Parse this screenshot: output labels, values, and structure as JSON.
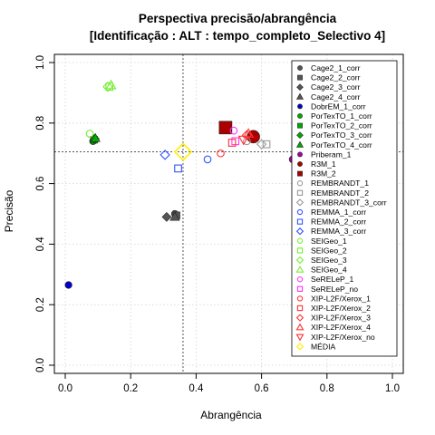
{
  "chart_data": {
    "type": "scatter",
    "title": "Perspectiva precisão/abrangência",
    "subtitle": "[Identificação : ALT : tempo_completo_Selectivo 4]",
    "xlabel": "Abrangência",
    "ylabel": "Precisão",
    "xlim": [
      0,
      1
    ],
    "ylim": [
      0,
      1
    ],
    "x_ticks": [
      "0.0",
      "0.2",
      "0.4",
      "0.6",
      "0.8",
      "1.0"
    ],
    "y_ticks": [
      "0.0",
      "0.2",
      "0.4",
      "0.6",
      "0.8",
      "1.0"
    ],
    "grid": true,
    "legend_position": "right",
    "reference_lines": {
      "mean_recall": 0.36,
      "mean_precision": 0.705
    },
    "series": [
      {
        "name": "Cage2_1_corr",
        "color": "#555555",
        "shape": "circle",
        "filled": true,
        "points": [
          [
            0.335,
            0.5
          ]
        ]
      },
      {
        "name": "Cage2_2_corr",
        "color": "#555555",
        "shape": "square",
        "filled": true,
        "points": [
          [
            0.34,
            0.495
          ]
        ]
      },
      {
        "name": "Cage2_3_corr",
        "color": "#555555",
        "shape": "diamond",
        "filled": true,
        "points": [
          [
            0.31,
            0.49
          ]
        ]
      },
      {
        "name": "Cage2_4_corr",
        "color": "#555555",
        "shape": "triangle",
        "filled": true,
        "points": [
          [
            0.335,
            0.49
          ]
        ]
      },
      {
        "name": "DobrEM_1_corr",
        "color": "#0000cc",
        "shape": "circle",
        "filled": true,
        "points": [
          [
            0.01,
            0.265
          ]
        ]
      },
      {
        "name": "PorTexTO_1_corr",
        "color": "#00aa00",
        "shape": "circle",
        "filled": true,
        "points": [
          [
            0.085,
            0.74
          ]
        ]
      },
      {
        "name": "PorTexTO_2_corr",
        "color": "#00aa00",
        "shape": "square",
        "filled": true,
        "points": [
          [
            0.088,
            0.745
          ]
        ]
      },
      {
        "name": "PorTexTO_3_corr",
        "color": "#00aa00",
        "shape": "diamond",
        "filled": true,
        "points": [
          [
            0.09,
            0.748
          ]
        ]
      },
      {
        "name": "PorTexTO_4_corr",
        "color": "#00aa00",
        "shape": "triangle",
        "filled": true,
        "points": [
          [
            0.092,
            0.75
          ]
        ]
      },
      {
        "name": "Priberam_1",
        "color": "#aa00aa",
        "shape": "circle",
        "filled": true,
        "points": [
          [
            0.695,
            0.68
          ]
        ]
      },
      {
        "name": "R3M_1",
        "color": "#aa0000",
        "shape": "circle",
        "filled": true,
        "big": true,
        "points": [
          [
            0.575,
            0.755
          ]
        ]
      },
      {
        "name": "R3M_2",
        "color": "#aa0000",
        "shape": "square",
        "filled": true,
        "big": true,
        "points": [
          [
            0.49,
            0.785
          ]
        ]
      },
      {
        "name": "REMBRANDT_1",
        "color": "#999999",
        "shape": "circle",
        "filled": false,
        "points": [
          [
            0.555,
            0.74
          ]
        ]
      },
      {
        "name": "REMBRANDT_2",
        "color": "#999999",
        "shape": "square",
        "filled": false,
        "points": [
          [
            0.615,
            0.73
          ]
        ]
      },
      {
        "name": "REMBRANDT_3_corr",
        "color": "#999999",
        "shape": "diamond",
        "filled": false,
        "points": [
          [
            0.6,
            0.73
          ]
        ]
      },
      {
        "name": "REMMA_1_corr",
        "color": "#3355ff",
        "shape": "circle",
        "filled": false,
        "points": [
          [
            0.435,
            0.68
          ]
        ]
      },
      {
        "name": "REMMA_2_corr",
        "color": "#3355ff",
        "shape": "square",
        "filled": false,
        "points": [
          [
            0.345,
            0.65
          ]
        ]
      },
      {
        "name": "REMMA_3_corr",
        "color": "#3355ff",
        "shape": "diamond",
        "filled": false,
        "points": [
          [
            0.305,
            0.695
          ]
        ]
      },
      {
        "name": "SEIGeo_1",
        "color": "#77ee33",
        "shape": "circle",
        "filled": false,
        "points": [
          [
            0.075,
            0.765
          ]
        ]
      },
      {
        "name": "SEIGeo_2",
        "color": "#77ee33",
        "shape": "square",
        "filled": false,
        "points": [
          [
            0.135,
            0.92
          ]
        ]
      },
      {
        "name": "SEIGeo_3",
        "color": "#77ee33",
        "shape": "diamond",
        "filled": false,
        "points": [
          [
            0.13,
            0.92
          ]
        ]
      },
      {
        "name": "SEIGeo_4",
        "color": "#77ee33",
        "shape": "triangle",
        "filled": false,
        "points": [
          [
            0.14,
            0.925
          ]
        ]
      },
      {
        "name": "SeRELeP_1",
        "color": "#ff33ff",
        "shape": "circle",
        "filled": false,
        "points": [
          [
            0.515,
            0.775
          ]
        ]
      },
      {
        "name": "SeRELeP_no",
        "color": "#ff33ff",
        "shape": "square",
        "filled": false,
        "points": [
          [
            0.52,
            0.74
          ]
        ]
      },
      {
        "name": "XIP-L2F/Xerox_1",
        "color": "#ff3333",
        "shape": "circle",
        "filled": false,
        "points": [
          [
            0.475,
            0.7
          ]
        ]
      },
      {
        "name": "XIP-L2F/Xerox_2",
        "color": "#ff3333",
        "shape": "square",
        "filled": false,
        "points": [
          [
            0.51,
            0.735
          ]
        ]
      },
      {
        "name": "XIP-L2F/Xerox_3",
        "color": "#ff3333",
        "shape": "diamond",
        "filled": false,
        "points": [
          [
            0.555,
            0.76
          ]
        ]
      },
      {
        "name": "XIP-L2F/Xerox_4",
        "color": "#ff3333",
        "shape": "triangle",
        "filled": false,
        "points": [
          [
            0.56,
            0.765
          ]
        ]
      },
      {
        "name": "XIP-L2F/Xerox_no",
        "color": "#ff3333",
        "shape": "triangle-down",
        "filled": false,
        "points": [
          [
            0.545,
            0.745
          ]
        ]
      },
      {
        "name": "MÉDIA",
        "color": "#ffee00",
        "shape": "diamond",
        "filled": false,
        "big": true,
        "points": [
          [
            0.36,
            0.705
          ]
        ]
      }
    ]
  }
}
